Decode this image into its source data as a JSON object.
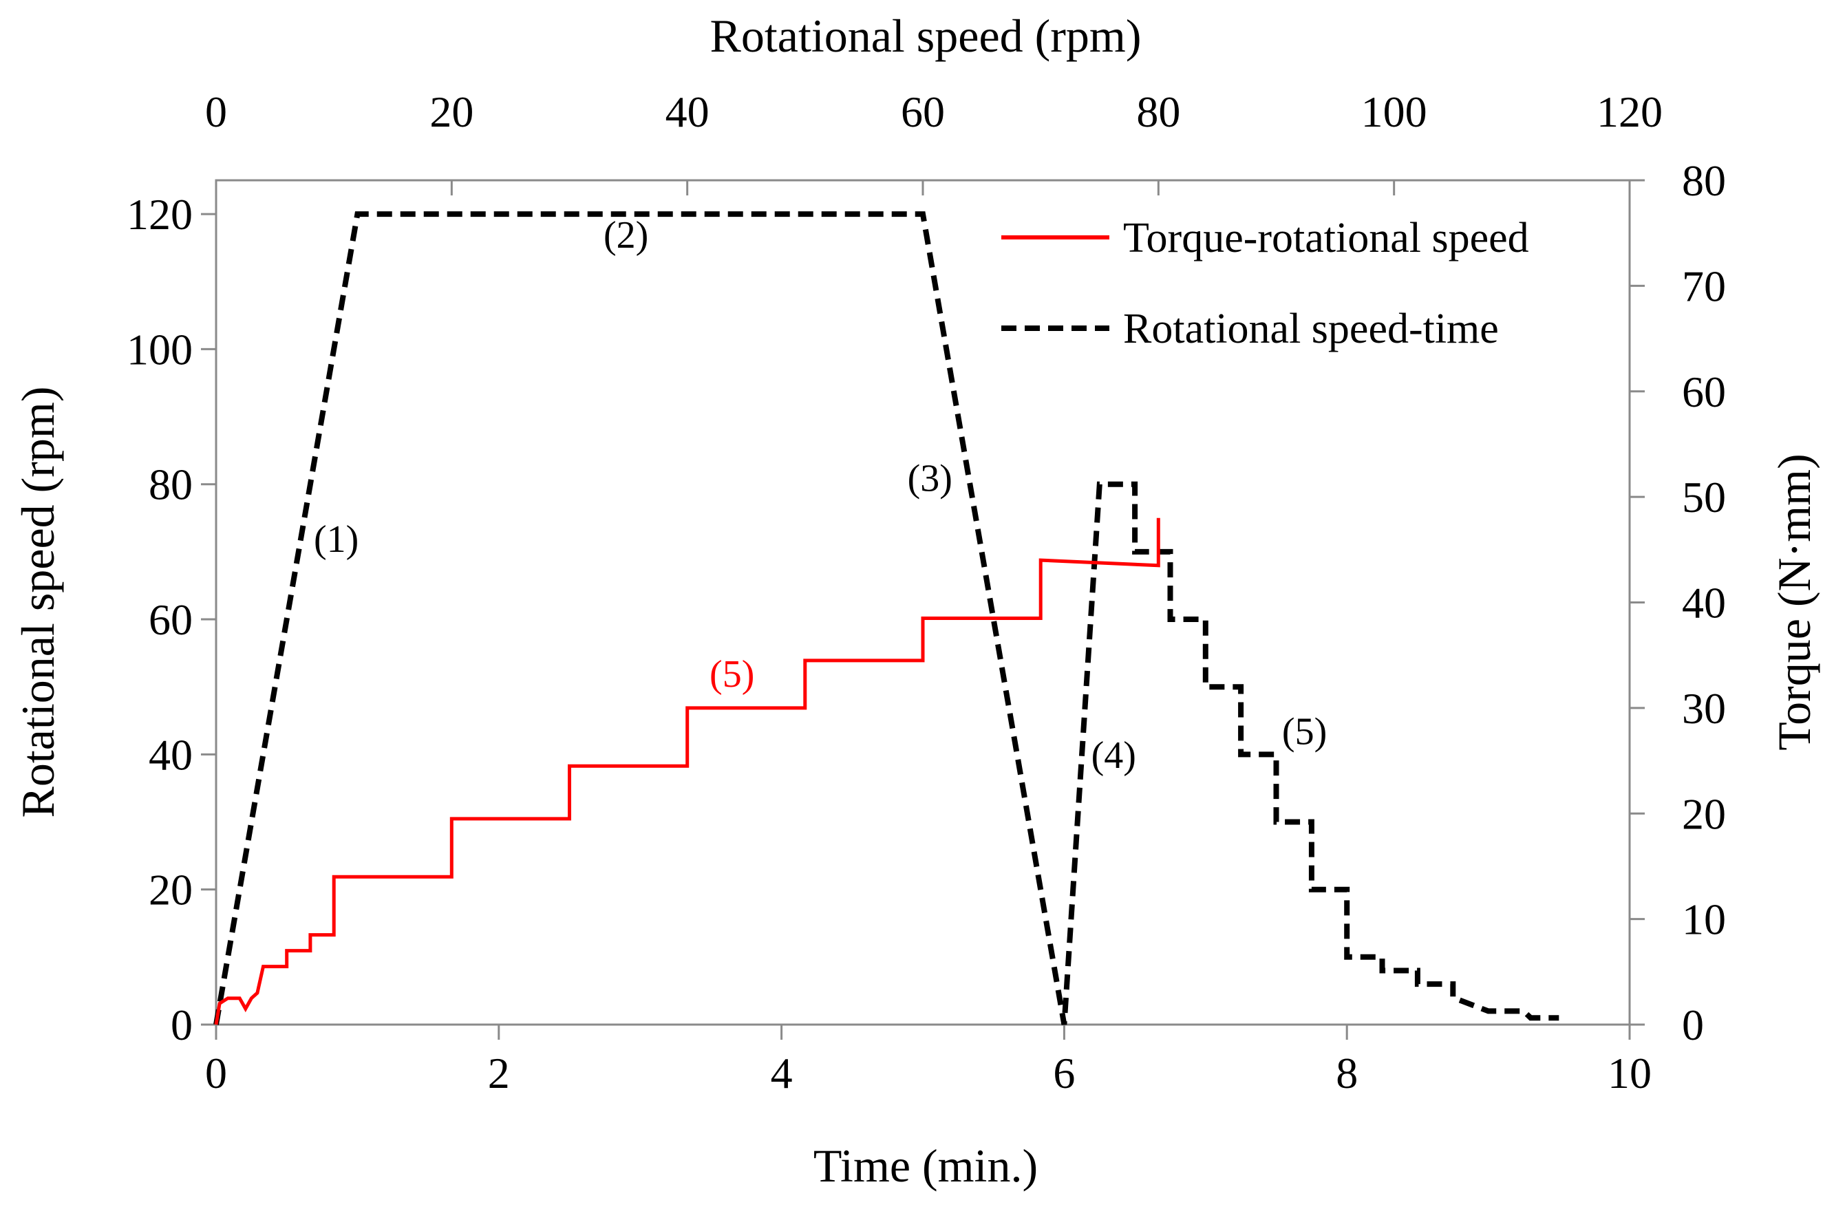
{
  "chart_data": {
    "type": "line",
    "axes": {
      "bottom": {
        "label": "Time (min.)",
        "range": [
          0,
          10
        ],
        "ticks": [
          "0",
          "2",
          "4",
          "6",
          "8",
          "10"
        ]
      },
      "top": {
        "label": "Rotational  speed (rpm)",
        "range": [
          0,
          120
        ],
        "ticks": [
          "0",
          "20",
          "40",
          "60",
          "80",
          "100",
          "120"
        ]
      },
      "left": {
        "label": "Rotational  speed (rpm)",
        "range": [
          0,
          125
        ],
        "ticks": [
          "0",
          "20",
          "40",
          "60",
          "80",
          "100",
          "120"
        ]
      },
      "right": {
        "label": "Torque (N·mm)",
        "range": [
          0,
          80
        ],
        "ticks": [
          "0",
          "10",
          "20",
          "30",
          "40",
          "50",
          "60",
          "70",
          "80"
        ]
      }
    },
    "legend": {
      "position": "top-right",
      "entries": [
        {
          "label": "Torque-rotational speed",
          "color": "#ff0000",
          "style": "solid"
        },
        {
          "label": "Rotational speed-time",
          "color": "#000000",
          "style": "dashed"
        }
      ]
    },
    "series": [
      {
        "name": "Rotational speed-time",
        "x_axis": "bottom",
        "y_axis": "left",
        "color": "#000000",
        "style": "dashed",
        "points": [
          [
            0,
            0
          ],
          [
            1,
            120
          ],
          [
            5,
            120
          ],
          [
            6,
            0
          ],
          [
            6.25,
            80
          ],
          [
            6.5,
            80
          ],
          [
            6.5,
            70
          ],
          [
            6.75,
            70
          ],
          [
            6.75,
            60
          ],
          [
            7,
            60
          ],
          [
            7,
            50
          ],
          [
            7.25,
            50
          ],
          [
            7.25,
            40
          ],
          [
            7.5,
            40
          ],
          [
            7.5,
            30
          ],
          [
            7.75,
            30
          ],
          [
            7.75,
            20
          ],
          [
            8,
            20
          ],
          [
            8,
            10
          ],
          [
            8.25,
            10
          ],
          [
            8.25,
            8
          ],
          [
            8.5,
            8
          ],
          [
            8.5,
            6
          ],
          [
            8.75,
            6
          ],
          [
            8.75,
            4
          ],
          [
            9,
            2
          ],
          [
            9.25,
            2
          ],
          [
            9.3,
            1
          ],
          [
            9.5,
            1
          ]
        ]
      },
      {
        "name": "Torque-rotational speed",
        "x_axis": "top",
        "y_axis": "right",
        "color": "#ff0000",
        "style": "solid",
        "points": [
          [
            0,
            0
          ],
          [
            0.3,
            2
          ],
          [
            1,
            2.5
          ],
          [
            2,
            2.5
          ],
          [
            2.5,
            1.5
          ],
          [
            3,
            2.5
          ],
          [
            3.5,
            3
          ],
          [
            4,
            5.5
          ],
          [
            6,
            5.5
          ],
          [
            6,
            7
          ],
          [
            8,
            7
          ],
          [
            8,
            8.5
          ],
          [
            10,
            8.5
          ],
          [
            10,
            14
          ],
          [
            20,
            14
          ],
          [
            20,
            19.5
          ],
          [
            30,
            19.5
          ],
          [
            30,
            24.5
          ],
          [
            40,
            24.5
          ],
          [
            40,
            30
          ],
          [
            50,
            30
          ],
          [
            50,
            34.5
          ],
          [
            60,
            34.5
          ],
          [
            60,
            38.5
          ],
          [
            70,
            38.5
          ],
          [
            70,
            44
          ],
          [
            80,
            43.5
          ],
          [
            80,
            48
          ]
        ]
      }
    ],
    "annotations": [
      {
        "text": "(1)",
        "x": 0.85,
        "y": 70,
        "axes": "bottom-left",
        "color": "#000000"
      },
      {
        "text": "(2)",
        "x": 2.9,
        "y": 115,
        "axes": "bottom-left",
        "color": "#000000"
      },
      {
        "text": "(3)",
        "x": 5.05,
        "y": 79,
        "axes": "bottom-left",
        "color": "#000000"
      },
      {
        "text": "(4)",
        "x": 6.35,
        "y": 38,
        "axes": "bottom-left",
        "color": "#000000"
      },
      {
        "text": "(5)",
        "x": 7.7,
        "y": 41.5,
        "axes": "bottom-left",
        "color": "#000000"
      },
      {
        "text": "(5)",
        "x": 3.65,
        "y": 50,
        "axes": "bottom-left",
        "color": "#ff0000"
      }
    ]
  }
}
